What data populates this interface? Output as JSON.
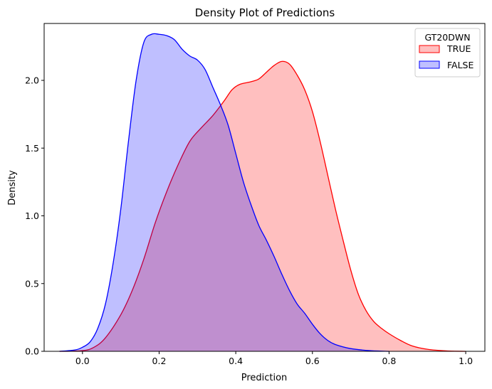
{
  "chart_data": {
    "type": "area",
    "title": "Density Plot of Predictions",
    "xlabel": "Prediction",
    "ylabel": "Density",
    "xlim": [
      -0.1,
      1.05
    ],
    "ylim": [
      0,
      2.42
    ],
    "xticks": [
      0.0,
      0.2,
      0.4,
      0.6,
      0.8,
      1.0
    ],
    "xtick_labels": [
      "0.0",
      "0.2",
      "0.4",
      "0.6",
      "0.8",
      "1.0"
    ],
    "yticks": [
      0.0,
      0.5,
      1.0,
      1.5,
      2.0
    ],
    "ytick_labels": [
      "0.0",
      "0.5",
      "1.0",
      "1.5",
      "2.0"
    ],
    "grid": false,
    "legend": {
      "title": "GT20DWN",
      "placement": "top-right"
    },
    "series": [
      {
        "name": "TRUE",
        "color": "#ff0000",
        "fill_color": "#ff0000",
        "fill_opacity": 0.25,
        "points": [
          [
            -0.06,
            0.0
          ],
          [
            0.0,
            0.005
          ],
          [
            0.03,
            0.03
          ],
          [
            0.06,
            0.1
          ],
          [
            0.1,
            0.27
          ],
          [
            0.13,
            0.45
          ],
          [
            0.16,
            0.68
          ],
          [
            0.19,
            0.95
          ],
          [
            0.22,
            1.18
          ],
          [
            0.25,
            1.38
          ],
          [
            0.28,
            1.55
          ],
          [
            0.31,
            1.65
          ],
          [
            0.34,
            1.74
          ],
          [
            0.37,
            1.85
          ],
          [
            0.39,
            1.93
          ],
          [
            0.41,
            1.97
          ],
          [
            0.44,
            1.99
          ],
          [
            0.46,
            2.01
          ],
          [
            0.48,
            2.06
          ],
          [
            0.5,
            2.11
          ],
          [
            0.52,
            2.14
          ],
          [
            0.54,
            2.12
          ],
          [
            0.56,
            2.04
          ],
          [
            0.58,
            1.93
          ],
          [
            0.6,
            1.77
          ],
          [
            0.62,
            1.55
          ],
          [
            0.64,
            1.3
          ],
          [
            0.66,
            1.05
          ],
          [
            0.68,
            0.82
          ],
          [
            0.7,
            0.6
          ],
          [
            0.72,
            0.42
          ],
          [
            0.74,
            0.3
          ],
          [
            0.76,
            0.22
          ],
          [
            0.78,
            0.17
          ],
          [
            0.8,
            0.13
          ],
          [
            0.83,
            0.08
          ],
          [
            0.86,
            0.04
          ],
          [
            0.9,
            0.015
          ],
          [
            0.95,
            0.003
          ],
          [
            1.0,
            0.0
          ]
        ]
      },
      {
        "name": "FALSE",
        "color": "#0000ff",
        "fill_color": "#0000ff",
        "fill_opacity": 0.25,
        "points": [
          [
            -0.06,
            0.0
          ],
          [
            -0.02,
            0.01
          ],
          [
            0.0,
            0.03
          ],
          [
            0.02,
            0.07
          ],
          [
            0.04,
            0.17
          ],
          [
            0.06,
            0.35
          ],
          [
            0.08,
            0.65
          ],
          [
            0.1,
            1.05
          ],
          [
            0.12,
            1.55
          ],
          [
            0.14,
            2.0
          ],
          [
            0.16,
            2.28
          ],
          [
            0.18,
            2.34
          ],
          [
            0.2,
            2.34
          ],
          [
            0.22,
            2.33
          ],
          [
            0.24,
            2.3
          ],
          [
            0.26,
            2.23
          ],
          [
            0.28,
            2.18
          ],
          [
            0.3,
            2.15
          ],
          [
            0.32,
            2.08
          ],
          [
            0.34,
            1.95
          ],
          [
            0.36,
            1.82
          ],
          [
            0.38,
            1.67
          ],
          [
            0.4,
            1.46
          ],
          [
            0.42,
            1.25
          ],
          [
            0.44,
            1.08
          ],
          [
            0.46,
            0.93
          ],
          [
            0.48,
            0.82
          ],
          [
            0.5,
            0.7
          ],
          [
            0.52,
            0.57
          ],
          [
            0.54,
            0.45
          ],
          [
            0.56,
            0.35
          ],
          [
            0.58,
            0.28
          ],
          [
            0.6,
            0.2
          ],
          [
            0.62,
            0.13
          ],
          [
            0.64,
            0.08
          ],
          [
            0.66,
            0.05
          ],
          [
            0.7,
            0.02
          ],
          [
            0.75,
            0.005
          ],
          [
            0.8,
            0.0
          ]
        ]
      }
    ]
  }
}
